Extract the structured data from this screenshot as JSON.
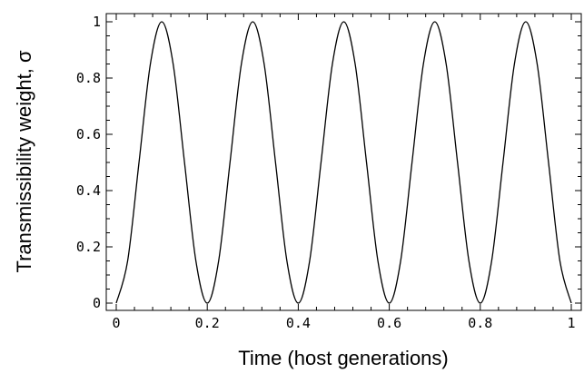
{
  "chart_data": {
    "type": "line",
    "title": "",
    "xlabel": "Time (host generations)",
    "ylabel": "Transmissibility weight, σ",
    "xlim": [
      0,
      1
    ],
    "ylim": [
      0,
      1
    ],
    "x_ticks": [
      0,
      0.2,
      0.4,
      0.6,
      0.8,
      1
    ],
    "x_tick_labels": [
      "0",
      "0.2",
      "0.4",
      "0.6",
      "0.8",
      "1"
    ],
    "y_ticks": [
      0,
      0.2,
      0.4,
      0.6,
      0.8,
      1
    ],
    "y_tick_labels": [
      "0",
      "0.2",
      "0.4",
      "0.6",
      "0.8",
      "1"
    ],
    "grid": false,
    "legend": "none",
    "series": [
      {
        "x": [
          0,
          0.025,
          0.05,
          0.075,
          0.1,
          0.125,
          0.15,
          0.175,
          0.2,
          0.225,
          0.25,
          0.275,
          0.3,
          0.325,
          0.35,
          0.375,
          0.4,
          0.425,
          0.45,
          0.475,
          0.5,
          0.525,
          0.55,
          0.575,
          0.6,
          0.625,
          0.65,
          0.675,
          0.7,
          0.725,
          0.75,
          0.775,
          0.8,
          0.825,
          0.85,
          0.875,
          0.9,
          0.925,
          0.95,
          0.975,
          1
        ],
        "y": [
          0,
          0.15,
          0.5,
          0.85,
          1,
          0.85,
          0.5,
          0.15,
          0,
          0.15,
          0.5,
          0.85,
          1,
          0.85,
          0.5,
          0.15,
          0,
          0.15,
          0.5,
          0.85,
          1,
          0.85,
          0.5,
          0.15,
          0,
          0.15,
          0.5,
          0.85,
          1,
          0.85,
          0.5,
          0.15,
          0,
          0.15,
          0.5,
          0.85,
          1,
          0.85,
          0.5,
          0.15,
          0
        ]
      }
    ]
  }
}
